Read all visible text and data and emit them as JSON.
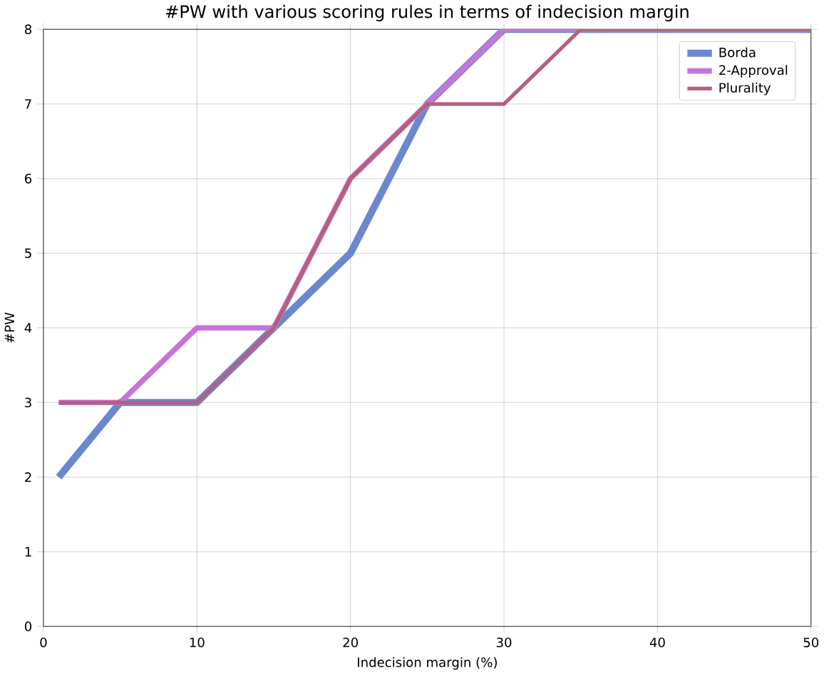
{
  "chart_data": {
    "type": "line",
    "title": "#PW with various scoring rules in terms of indecision margin",
    "xlabel": "Indecision margin (%)",
    "ylabel": "#PW",
    "x": [
      1,
      5,
      10,
      15,
      20,
      25,
      30,
      35,
      40,
      45,
      50
    ],
    "series": [
      {
        "name": "Borda",
        "color": "#6a88d0",
        "values": [
          2,
          3,
          3,
          4,
          5,
          7,
          8,
          8,
          8,
          8,
          8
        ]
      },
      {
        "name": "2-Approval",
        "color": "#c774d8",
        "values": [
          3,
          3,
          4,
          4,
          6,
          7,
          8,
          8,
          8,
          8,
          8
        ]
      },
      {
        "name": "Plurality",
        "color": "#b5607a",
        "values": [
          3,
          3,
          3,
          4,
          6,
          7,
          7,
          8,
          8,
          8,
          8
        ]
      }
    ],
    "xlim": [
      0,
      50
    ],
    "ylim": [
      0,
      8
    ],
    "xticks": [
      0,
      10,
      20,
      30,
      40,
      50
    ],
    "yticks": [
      0,
      1,
      2,
      3,
      4,
      5,
      6,
      7,
      8
    ],
    "grid": true,
    "legend": "top right",
    "line_style": "solid",
    "marker": "none"
  }
}
